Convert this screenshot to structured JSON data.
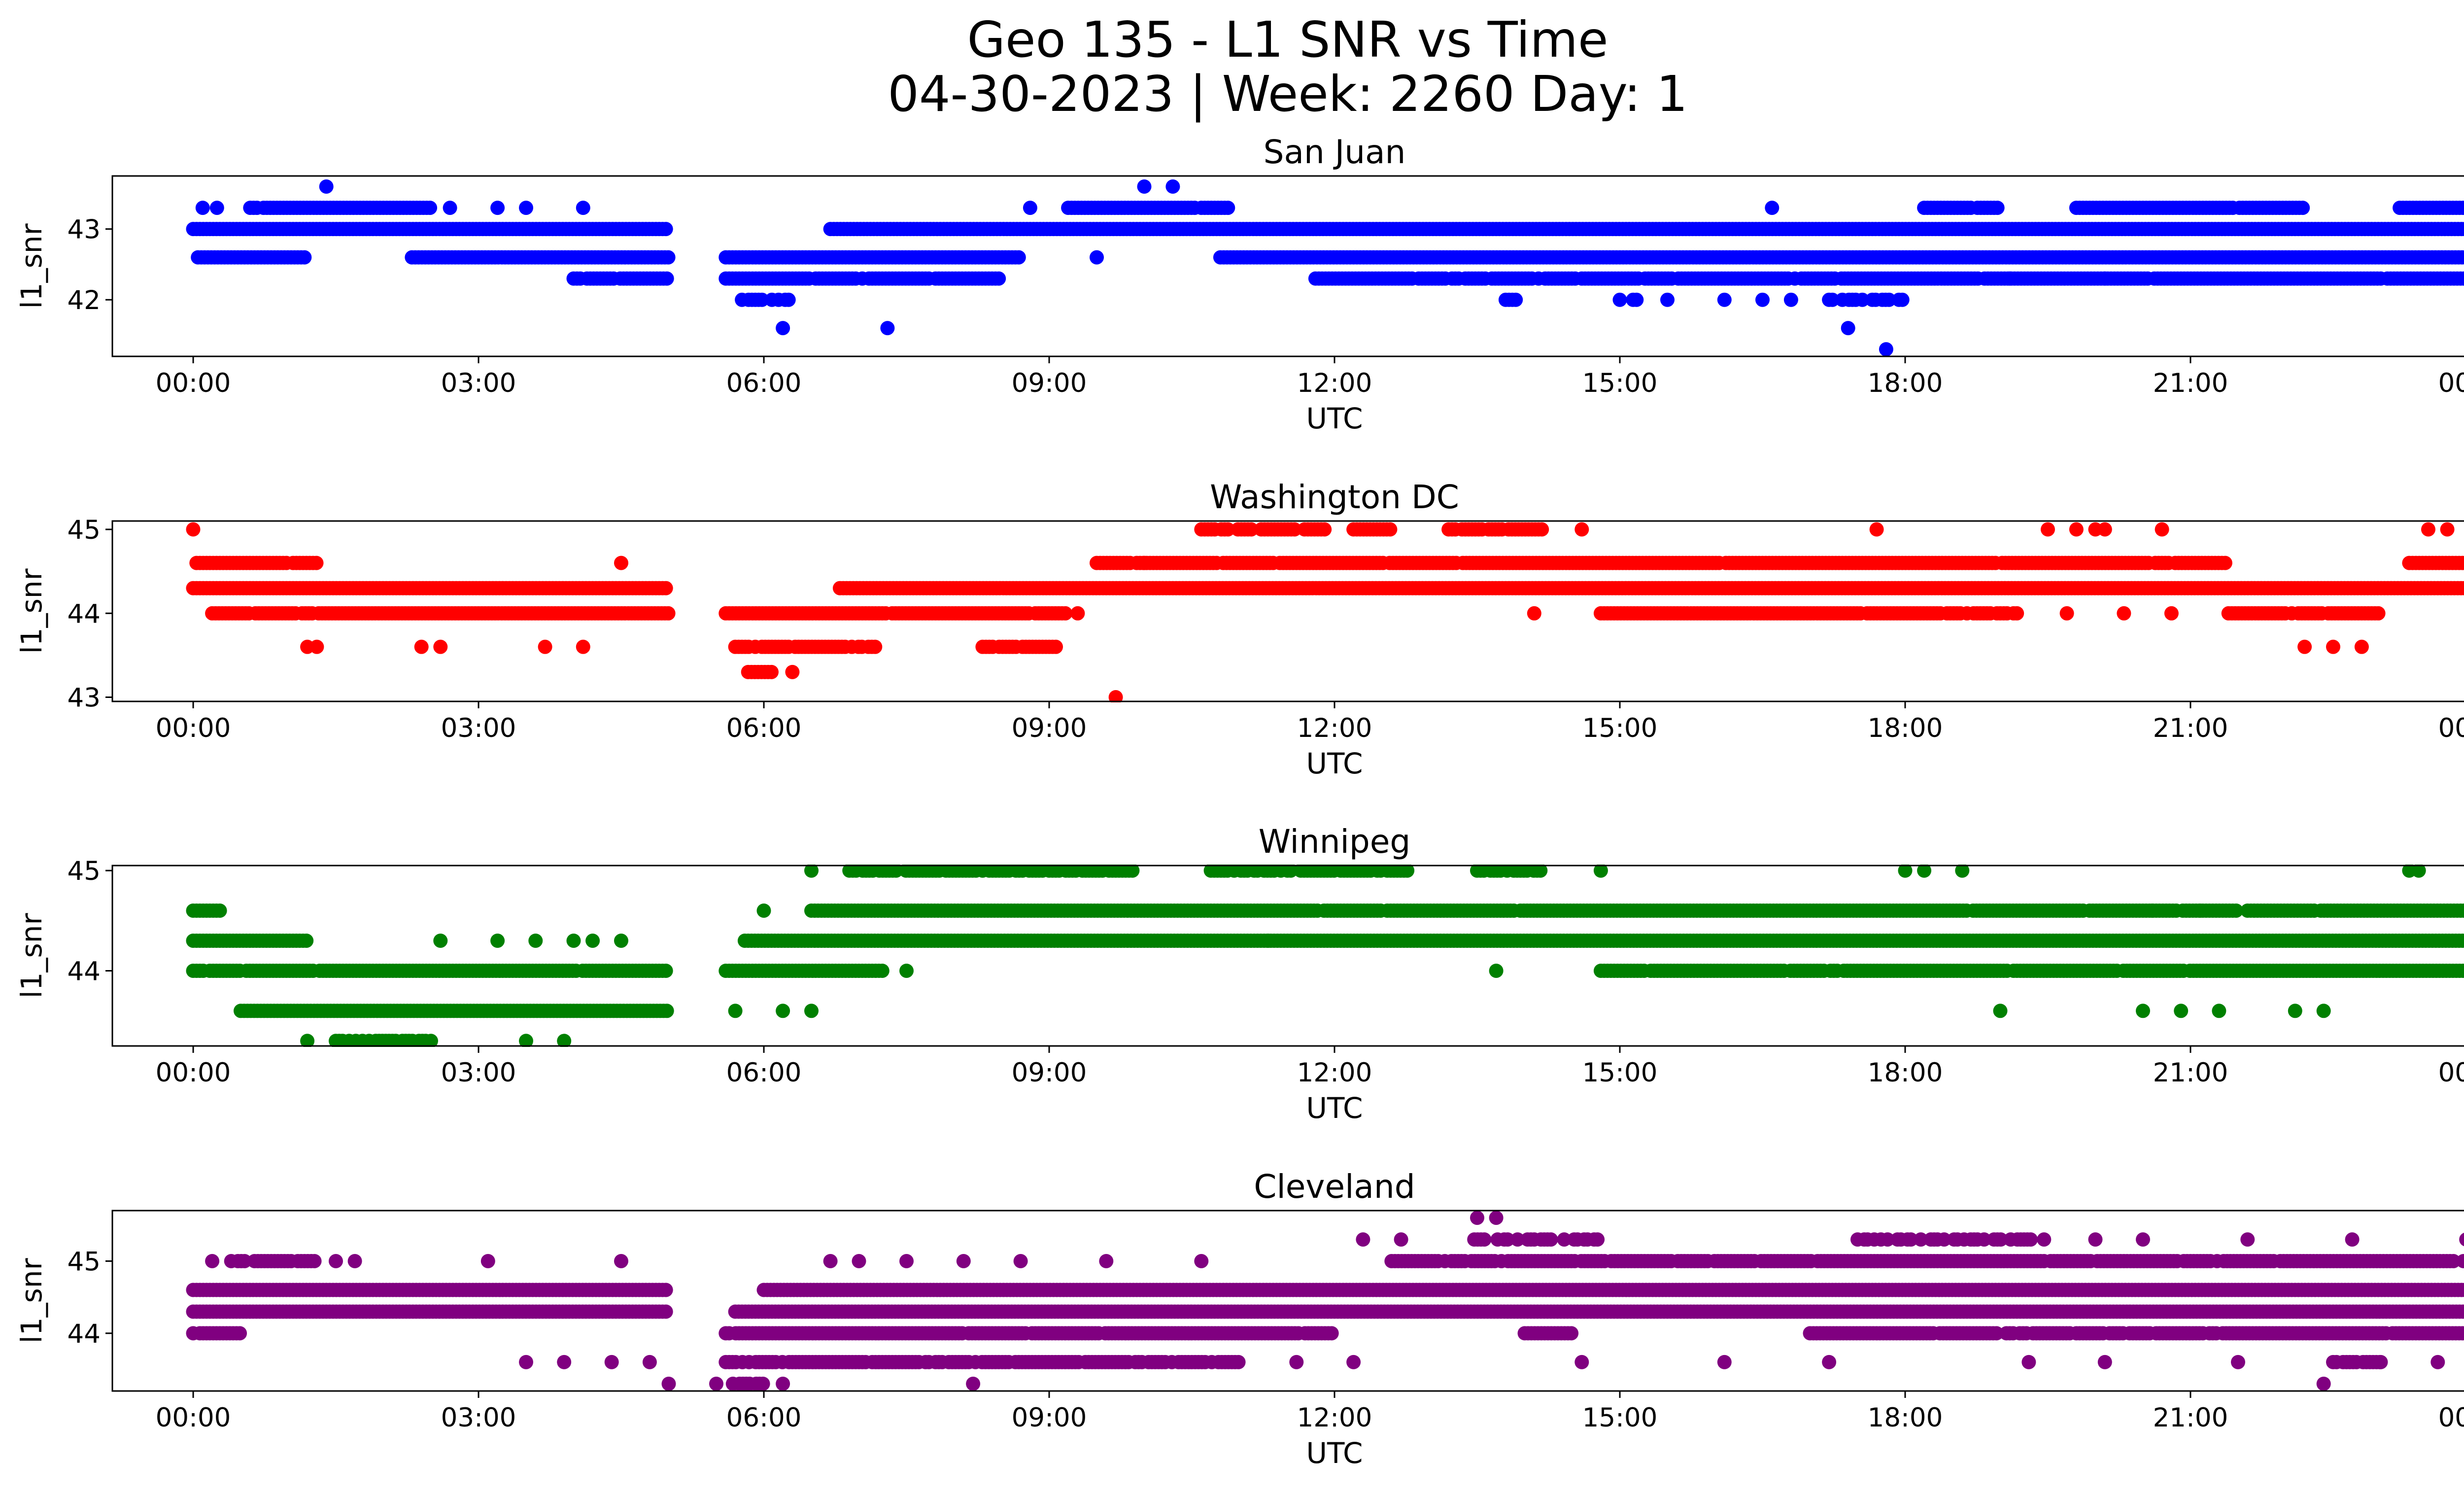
{
  "figure": {
    "title_line1": "Geo 135 - L1 SNR vs Time",
    "title_line2": "04-30-2023 | Week: 2260 Day: 1"
  },
  "chart_data": [
    {
      "type": "scatter",
      "title": "San Juan",
      "xlabel": "UTC",
      "ylabel": "l1_snr",
      "color": "#0000ff",
      "xlim": [
        "23:00",
        "01:00"
      ],
      "x_ticks": [
        "00:00",
        "03:00",
        "06:00",
        "09:00",
        "12:00",
        "15:00",
        "18:00",
        "21:00",
        "00:00"
      ],
      "ylim": [
        41.2,
        43.75
      ],
      "y_ticks": [
        42,
        43
      ],
      "bands": [
        {
          "y": 43.3,
          "ranges": [
            [
              0.6,
              2.5
            ],
            [
              9.2,
              10.9
            ],
            [
              18.2,
              19.0
            ],
            [
              19.8,
              22.2
            ],
            [
              23.2,
              24.0
            ]
          ],
          "density": 0.98
        },
        {
          "y": 43.0,
          "ranges": [
            [
              0.0,
              5.0
            ],
            [
              6.7,
              24.0
            ]
          ],
          "density": 1.0
        },
        {
          "y": 42.6,
          "ranges": [
            [
              0.05,
              1.2
            ],
            [
              2.3,
              5.0
            ],
            [
              5.6,
              8.7
            ],
            [
              10.8,
              24.0
            ]
          ],
          "density": 1.0
        },
        {
          "y": 42.3,
          "ranges": [
            [
              4.0,
              5.0
            ],
            [
              5.6,
              8.5
            ],
            [
              11.8,
              24.0
            ]
          ],
          "density": 0.95
        },
        {
          "y": 42.0,
          "ranges": [
            [
              5.7,
              6.4
            ],
            [
              13.8,
              14.0
            ],
            [
              15.0,
              15.2
            ],
            [
              17.2,
              18.0
            ]
          ],
          "density": 0.55
        }
      ],
      "points": [
        {
          "x": 0.1,
          "y": 43.3
        },
        {
          "x": 0.25,
          "y": 43.3
        },
        {
          "x": 1.4,
          "y": 43.6
        },
        {
          "x": 2.7,
          "y": 43.3
        },
        {
          "x": 3.2,
          "y": 43.3
        },
        {
          "x": 3.5,
          "y": 43.3
        },
        {
          "x": 4.1,
          "y": 43.3
        },
        {
          "x": 6.2,
          "y": 41.6
        },
        {
          "x": 7.3,
          "y": 41.6
        },
        {
          "x": 8.8,
          "y": 43.3
        },
        {
          "x": 9.5,
          "y": 42.6
        },
        {
          "x": 10.0,
          "y": 43.6
        },
        {
          "x": 10.3,
          "y": 43.6
        },
        {
          "x": 16.6,
          "y": 43.3
        },
        {
          "x": 17.4,
          "y": 41.6
        },
        {
          "x": 17.8,
          "y": 41.3
        },
        {
          "x": 20.1,
          "y": 42.3
        },
        {
          "x": 19.1,
          "y": 42.3
        },
        {
          "x": 16.1,
          "y": 42.0
        },
        {
          "x": 16.5,
          "y": 42.0
        },
        {
          "x": 15.5,
          "y": 42.0
        },
        {
          "x": 16.8,
          "y": 42.0
        }
      ]
    },
    {
      "type": "scatter",
      "title": "Washington DC",
      "xlabel": "UTC",
      "ylabel": "l1_snr",
      "color": "#ff0000",
      "xlim": [
        "23:00",
        "01:00"
      ],
      "x_ticks": [
        "00:00",
        "03:00",
        "06:00",
        "09:00",
        "12:00",
        "15:00",
        "18:00",
        "21:00",
        "00:00"
      ],
      "ylim": [
        42.95,
        45.1
      ],
      "y_ticks": [
        43,
        44,
        45
      ],
      "bands": [
        {
          "y": 45.0,
          "ranges": [
            [
              10.6,
              11.9
            ],
            [
              12.2,
              12.6
            ],
            [
              13.2,
              14.2
            ]
          ],
          "density": 0.8
        },
        {
          "y": 44.6,
          "ranges": [
            [
              0.0,
              1.3
            ],
            [
              9.5,
              21.4
            ],
            [
              23.3,
              24.0
            ]
          ],
          "density": 0.98
        },
        {
          "y": 44.3,
          "ranges": [
            [
              0.0,
              5.0
            ],
            [
              6.8,
              24.0
            ]
          ],
          "density": 1.0
        },
        {
          "y": 44.0,
          "ranges": [
            [
              0.2,
              5.0
            ],
            [
              5.6,
              9.2
            ],
            [
              14.8,
              19.2
            ],
            [
              21.4,
              23.0
            ]
          ],
          "density": 0.97
        },
        {
          "y": 43.6,
          "ranges": [
            [
              5.7,
              7.2
            ],
            [
              8.3,
              9.1
            ]
          ],
          "density": 0.92
        },
        {
          "y": 43.3,
          "ranges": [
            [
              5.8,
              6.1
            ]
          ],
          "density": 0.8
        }
      ],
      "points": [
        {
          "x": 0.0,
          "y": 45.0
        },
        {
          "x": 1.2,
          "y": 43.6
        },
        {
          "x": 1.3,
          "y": 43.6
        },
        {
          "x": 2.4,
          "y": 43.6
        },
        {
          "x": 2.6,
          "y": 43.6
        },
        {
          "x": 3.7,
          "y": 43.6
        },
        {
          "x": 4.1,
          "y": 43.6
        },
        {
          "x": 4.5,
          "y": 44.6
        },
        {
          "x": 6.3,
          "y": 43.3
        },
        {
          "x": 9.7,
          "y": 43.0
        },
        {
          "x": 9.3,
          "y": 44.0
        },
        {
          "x": 14.1,
          "y": 44.0
        },
        {
          "x": 14.6,
          "y": 45.0
        },
        {
          "x": 17.7,
          "y": 45.0
        },
        {
          "x": 19.5,
          "y": 45.0
        },
        {
          "x": 19.8,
          "y": 45.0
        },
        {
          "x": 20.0,
          "y": 45.0
        },
        {
          "x": 20.1,
          "y": 45.0
        },
        {
          "x": 20.7,
          "y": 45.0
        },
        {
          "x": 19.7,
          "y": 44.0
        },
        {
          "x": 20.3,
          "y": 44.0
        },
        {
          "x": 20.8,
          "y": 44.0
        },
        {
          "x": 22.2,
          "y": 43.6
        },
        {
          "x": 22.5,
          "y": 43.6
        },
        {
          "x": 22.8,
          "y": 43.6
        },
        {
          "x": 23.5,
          "y": 45.0
        },
        {
          "x": 23.7,
          "y": 45.0
        },
        {
          "x": 10.0,
          "y": 44.6
        }
      ]
    },
    {
      "type": "scatter",
      "title": "Winnipeg",
      "xlabel": "UTC",
      "ylabel": "l1_snr",
      "color": "#008000",
      "xlim": [
        "23:00",
        "01:00"
      ],
      "x_ticks": [
        "00:00",
        "03:00",
        "06:00",
        "09:00",
        "12:00",
        "15:00",
        "18:00",
        "21:00",
        "00:00"
      ],
      "ylim": [
        43.25,
        45.05
      ],
      "y_ticks": [
        44,
        45
      ],
      "bands": [
        {
          "y": 45.0,
          "ranges": [
            [
              6.9,
              9.9
            ],
            [
              10.7,
              12.8
            ],
            [
              13.5,
              14.2
            ]
          ],
          "density": 0.85
        },
        {
          "y": 44.6,
          "ranges": [
            [
              0.0,
              0.3
            ],
            [
              6.5,
              21.5
            ],
            [
              21.6,
              24.0
            ]
          ],
          "density": 0.99
        },
        {
          "y": 44.3,
          "ranges": [
            [
              0.0,
              1.2
            ],
            [
              5.8,
              24.0
            ]
          ],
          "density": 1.0
        },
        {
          "y": 44.0,
          "ranges": [
            [
              0.0,
              5.0
            ],
            [
              5.6,
              7.3
            ],
            [
              14.8,
              24.0
            ]
          ],
          "density": 0.97
        },
        {
          "y": 43.6,
          "ranges": [
            [
              0.5,
              5.0
            ]
          ],
          "density": 1.0
        },
        {
          "y": 43.3,
          "ranges": [
            [
              1.5,
              2.5
            ]
          ],
          "density": 0.75
        }
      ],
      "points": [
        {
          "x": 1.2,
          "y": 43.3
        },
        {
          "x": 2.5,
          "y": 43.3
        },
        {
          "x": 3.5,
          "y": 43.3
        },
        {
          "x": 3.9,
          "y": 43.3
        },
        {
          "x": 2.6,
          "y": 44.3
        },
        {
          "x": 3.2,
          "y": 44.3
        },
        {
          "x": 3.6,
          "y": 44.3
        },
        {
          "x": 4.0,
          "y": 44.3
        },
        {
          "x": 4.2,
          "y": 44.3
        },
        {
          "x": 4.5,
          "y": 44.3
        },
        {
          "x": 5.7,
          "y": 43.6
        },
        {
          "x": 6.2,
          "y": 43.6
        },
        {
          "x": 6.5,
          "y": 43.6
        },
        {
          "x": 6.0,
          "y": 44.6
        },
        {
          "x": 6.5,
          "y": 45.0
        },
        {
          "x": 7.5,
          "y": 44.0
        },
        {
          "x": 11.3,
          "y": 44.3
        },
        {
          "x": 13.7,
          "y": 44.0
        },
        {
          "x": 14.8,
          "y": 45.0
        },
        {
          "x": 18.0,
          "y": 45.0
        },
        {
          "x": 18.2,
          "y": 45.0
        },
        {
          "x": 18.6,
          "y": 45.0
        },
        {
          "x": 19.0,
          "y": 43.6
        },
        {
          "x": 20.5,
          "y": 43.6
        },
        {
          "x": 20.9,
          "y": 43.6
        },
        {
          "x": 21.3,
          "y": 43.6
        },
        {
          "x": 22.1,
          "y": 43.6
        },
        {
          "x": 22.4,
          "y": 43.6
        },
        {
          "x": 23.3,
          "y": 45.0
        },
        {
          "x": 23.4,
          "y": 45.0
        },
        {
          "x": 20.6,
          "y": 44.6
        },
        {
          "x": 21.1,
          "y": 44.6
        }
      ]
    },
    {
      "type": "scatter",
      "title": "Cleveland",
      "xlabel": "UTC",
      "ylabel": "l1_snr",
      "color": "#800080",
      "xlim": [
        "23:00",
        "01:00"
      ],
      "x_ticks": [
        "00:00",
        "03:00",
        "06:00",
        "09:00",
        "12:00",
        "15:00",
        "18:00",
        "21:00",
        "00:00"
      ],
      "ylim": [
        43.2,
        45.7
      ],
      "y_ticks": [
        44,
        45
      ],
      "bands": [
        {
          "y": 45.3,
          "ranges": [
            [
              13.4,
              14.8
            ],
            [
              17.5,
              19.5
            ]
          ],
          "density": 0.5
        },
        {
          "y": 45.0,
          "ranges": [
            [
              0.4,
              1.3
            ],
            [
              12.6,
              24.0
            ]
          ],
          "density": 0.95
        },
        {
          "y": 44.6,
          "ranges": [
            [
              0.0,
              5.0
            ],
            [
              6.0,
              24.0
            ]
          ],
          "density": 1.0
        },
        {
          "y": 44.3,
          "ranges": [
            [
              0.0,
              5.0
            ],
            [
              5.7,
              24.0
            ]
          ],
          "density": 1.0
        },
        {
          "y": 44.0,
          "ranges": [
            [
              0.0,
              0.5
            ],
            [
              5.6,
              12.0
            ],
            [
              14.0,
              14.5
            ],
            [
              17.0,
              24.0
            ]
          ],
          "density": 0.95
        },
        {
          "y": 43.6,
          "ranges": [
            [
              5.6,
              11.0
            ],
            [
              22.5,
              23.0
            ]
          ],
          "density": 0.9
        },
        {
          "y": 43.3,
          "ranges": [
            [
              5.5,
              6.0
            ]
          ],
          "density": 0.6
        }
      ],
      "points": [
        {
          "x": 0.2,
          "y": 45.0
        },
        {
          "x": 1.5,
          "y": 45.0
        },
        {
          "x": 1.7,
          "y": 45.0
        },
        {
          "x": 3.1,
          "y": 45.0
        },
        {
          "x": 4.5,
          "y": 45.0
        },
        {
          "x": 3.5,
          "y": 43.6
        },
        {
          "x": 3.9,
          "y": 43.6
        },
        {
          "x": 4.4,
          "y": 43.6
        },
        {
          "x": 4.8,
          "y": 43.6
        },
        {
          "x": 5.0,
          "y": 43.3
        },
        {
          "x": 6.2,
          "y": 43.3
        },
        {
          "x": 8.2,
          "y": 43.3
        },
        {
          "x": 6.7,
          "y": 45.0
        },
        {
          "x": 7.0,
          "y": 45.0
        },
        {
          "x": 7.5,
          "y": 45.0
        },
        {
          "x": 8.1,
          "y": 45.0
        },
        {
          "x": 8.7,
          "y": 45.0
        },
        {
          "x": 9.6,
          "y": 45.0
        },
        {
          "x": 10.6,
          "y": 45.0
        },
        {
          "x": 12.3,
          "y": 45.3
        },
        {
          "x": 12.7,
          "y": 45.3
        },
        {
          "x": 13.5,
          "y": 45.6
        },
        {
          "x": 13.7,
          "y": 45.6
        },
        {
          "x": 20.0,
          "y": 45.3
        },
        {
          "x": 20.5,
          "y": 45.3
        },
        {
          "x": 21.6,
          "y": 45.3
        },
        {
          "x": 22.7,
          "y": 45.3
        },
        {
          "x": 23.9,
          "y": 45.3
        },
        {
          "x": 22.4,
          "y": 43.3
        },
        {
          "x": 19.3,
          "y": 43.6
        },
        {
          "x": 20.1,
          "y": 43.6
        },
        {
          "x": 21.5,
          "y": 43.6
        },
        {
          "x": 14.6,
          "y": 43.6
        },
        {
          "x": 16.1,
          "y": 43.6
        },
        {
          "x": 17.2,
          "y": 43.6
        },
        {
          "x": 23.0,
          "y": 43.6
        },
        {
          "x": 23.6,
          "y": 43.6
        },
        {
          "x": 11.6,
          "y": 43.6
        },
        {
          "x": 12.2,
          "y": 43.6
        }
      ]
    }
  ]
}
